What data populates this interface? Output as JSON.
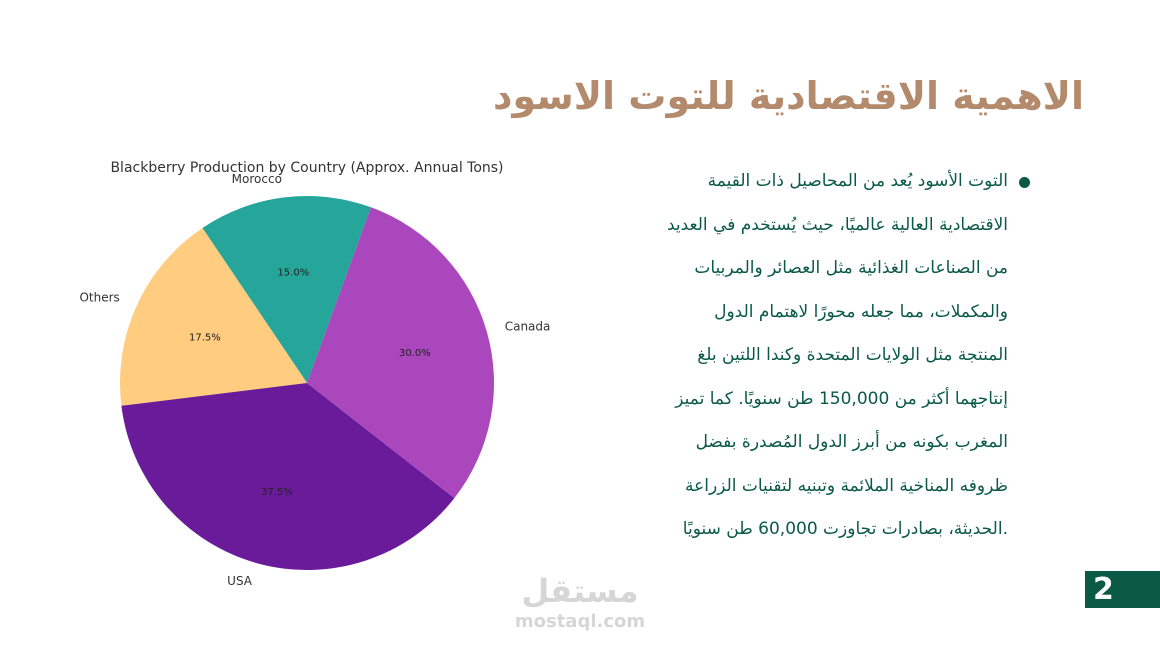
{
  "slide": {
    "title": "الاهمية الاقتصادية للتوت الاسود",
    "page_number": "2",
    "accent_color": "#b48a6c",
    "text_color": "#0b5a46"
  },
  "body_lines": [
    "التوت الأسود يُعد من المحاصيل ذات القيمة",
    "الاقتصادية العالية عالميًا، حيث يُستخدم في العديد",
    "من الصناعات الغذائية مثل العصائر والمربيات",
    "والمكملات، مما جعله محورًا لاهتمام الدول",
    "المنتجة مثل الولايات المتحدة وكندا اللتين بلغ",
    "إنتاجهما أكثر من 150,000 طن سنويًا. كما تميز",
    "المغرب بكونه من أبرز الدول المُصدرة بفضل",
    "ظروفه المناخية الملائمة وتبنيه لتقنيات الزراعة",
    ".الحديثة، بصادرات تجاوزت 60,000 طن سنويًا"
  ],
  "watermark": {
    "arabic": "مستقل",
    "latin": "mostaql.com"
  },
  "chart_data": {
    "type": "pie",
    "title": "Blackberry Production by Country (Approx. Annual Tons)",
    "start_angle_deg": 70,
    "direction": "counterclockwise",
    "slices": [
      {
        "label": "Morocco",
        "value": 15.0,
        "pct_label": "15.0%",
        "color": "#26a69a"
      },
      {
        "label": "Others",
        "value": 17.5,
        "pct_label": "17.5%",
        "color": "#ffcc80"
      },
      {
        "label": "USA",
        "value": 37.5,
        "pct_label": "37.5%",
        "color": "#6a1b9a"
      },
      {
        "label": "Canada",
        "value": 30.0,
        "pct_label": "30.0%",
        "color": "#ab47bc"
      }
    ]
  }
}
